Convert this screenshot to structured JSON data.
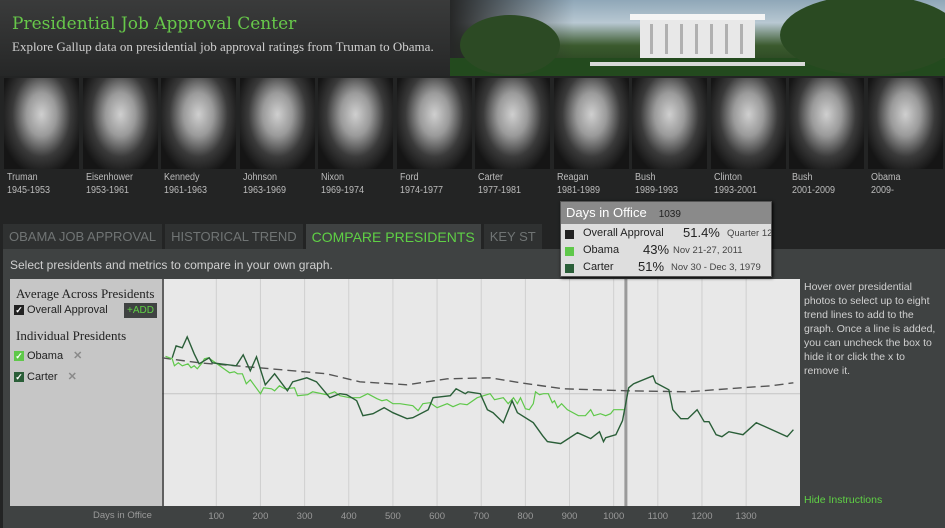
{
  "header": {
    "title": "Presidential Job Approval Center",
    "subtitle": "Explore Gallup data on presidential job approval ratings from Truman to Obama."
  },
  "presidents": [
    {
      "name": "Truman",
      "years": "1945-1953"
    },
    {
      "name": "Eisenhower",
      "years": "1953-1961"
    },
    {
      "name": "Kennedy",
      "years": "1961-1963"
    },
    {
      "name": "Johnson",
      "years": "1963-1969"
    },
    {
      "name": "Nixon",
      "years": "1969-1974"
    },
    {
      "name": "Ford",
      "years": "1974-1977"
    },
    {
      "name": "Carter",
      "years": "1977-1981"
    },
    {
      "name": "Reagan",
      "years": "1981-1989"
    },
    {
      "name": "Bush",
      "years": "1989-1993"
    },
    {
      "name": "Clinton",
      "years": "1993-2001"
    },
    {
      "name": "Bush",
      "years": "2001-2009"
    },
    {
      "name": "Obama",
      "years": "2009-"
    }
  ],
  "tabs": [
    "OBAMA JOB APPROVAL",
    "HISTORICAL TREND",
    "COMPARE PRESIDENTS",
    "KEY ST"
  ],
  "instruction": "Select presidents and metrics to compare in your own graph.",
  "left_panel": {
    "avg_heading": "Average Across Presidents",
    "overall": "Overall Approval",
    "add": "+ADD",
    "ind_heading": "Individual Presidents",
    "items": [
      "Obama",
      "Carter"
    ],
    "remove": "✕",
    "check": "✓"
  },
  "help": "Hover over presidential photos to select up to eight trend lines to add to the graph. Once a line is added, you can uncheck the box to hide it or click the x to remove it.",
  "hide_instructions": "Hide Instructions",
  "tooltip": {
    "title": "Days in Office",
    "day": "1039",
    "rows": [
      {
        "label": "Overall Approval",
        "value": "51.4%",
        "date": "Quarter 12",
        "color": "#222222"
      },
      {
        "label": "Obama",
        "value": "43%",
        "date": "Nov 21-27, 2011",
        "color": "#5fc84a"
      },
      {
        "label": "Carter",
        "value": "51%",
        "date": "Nov 30 - Dec 3, 1979",
        "color": "#2a5e38"
      }
    ]
  },
  "colors": {
    "accent": "#5fd045",
    "obama": "#5fc84a",
    "carter": "#2a5e38",
    "overall": "#555555"
  },
  "chart_data": {
    "type": "line",
    "xlabel": "Days in Office",
    "ylabel": "",
    "xlim": [
      -23,
      1422
    ],
    "ylim": [
      5,
      96
    ],
    "xticks": [
      100,
      200,
      300,
      400,
      500,
      600,
      700,
      800,
      900,
      1000,
      1100,
      1200,
      1300
    ],
    "reference_y": 50,
    "hover_x": 1039,
    "grid": "vertical",
    "series": [
      {
        "name": "Overall Approval",
        "style": "dashed",
        "points": [
          [
            -23,
            64.4
          ],
          [
            61,
            62.4
          ],
          [
            198,
            60.4
          ],
          [
            350,
            58
          ],
          [
            425,
            54.8
          ],
          [
            532,
            53.6
          ],
          [
            623,
            56
          ],
          [
            720,
            56.4
          ],
          [
            789,
            54.4
          ],
          [
            886,
            52
          ],
          [
            1032,
            51.2
          ],
          [
            1168,
            50.8
          ],
          [
            1289,
            52.4
          ],
          [
            1357,
            53.2
          ],
          [
            1407,
            54.4
          ]
        ]
      },
      {
        "name": "Obama",
        "style": "obama",
        "points": [
          [
            -15,
            65
          ],
          [
            0,
            64
          ],
          [
            5,
            61.2
          ],
          [
            14,
            62.4
          ],
          [
            23,
            61.2
          ],
          [
            36,
            62
          ],
          [
            43,
            60.4
          ],
          [
            50,
            61.2
          ],
          [
            57,
            60
          ],
          [
            68,
            62.4
          ],
          [
            73,
            64
          ],
          [
            82,
            64.4
          ],
          [
            95,
            62.8
          ],
          [
            114,
            60.4
          ],
          [
            130,
            58.4
          ],
          [
            141,
            58.8
          ],
          [
            148,
            58
          ],
          [
            159,
            58
          ],
          [
            168,
            54
          ],
          [
            177,
            55.6
          ],
          [
            200,
            50
          ],
          [
            207,
            52.4
          ],
          [
            225,
            52
          ],
          [
            232,
            51.2
          ],
          [
            243,
            53.2
          ],
          [
            255,
            52
          ],
          [
            277,
            52.4
          ],
          [
            284,
            49.2
          ],
          [
            307,
            49.6
          ],
          [
            318,
            50.8
          ],
          [
            350,
            49.6
          ],
          [
            368,
            50.8
          ],
          [
            380,
            49.2
          ],
          [
            402,
            48.4
          ],
          [
            425,
            48.4
          ],
          [
            443,
            50
          ],
          [
            464,
            48
          ],
          [
            475,
            47.2
          ],
          [
            486,
            47.6
          ],
          [
            500,
            46
          ],
          [
            516,
            46
          ],
          [
            545,
            45.2
          ],
          [
            557,
            43.2
          ],
          [
            568,
            46
          ],
          [
            584,
            46.4
          ],
          [
            600,
            44.4
          ],
          [
            623,
            46
          ],
          [
            636,
            44.8
          ],
          [
            652,
            46
          ],
          [
            668,
            45.6
          ],
          [
            691,
            48.4
          ],
          [
            720,
            50
          ],
          [
            730,
            47.6
          ],
          [
            750,
            48.4
          ],
          [
            761,
            46
          ],
          [
            773,
            48.4
          ],
          [
            782,
            46
          ],
          [
            789,
            48.4
          ],
          [
            800,
            44
          ],
          [
            809,
            43.6
          ],
          [
            818,
            46
          ],
          [
            823,
            50.8
          ],
          [
            832,
            49.6
          ],
          [
            841,
            50
          ],
          [
            852,
            50
          ],
          [
            861,
            46.4
          ],
          [
            866,
            47.2
          ],
          [
            873,
            44.4
          ],
          [
            882,
            46
          ],
          [
            895,
            43.6
          ],
          [
            920,
            41.2
          ],
          [
            936,
            41.2
          ],
          [
            948,
            43.6
          ],
          [
            955,
            41.2
          ],
          [
            970,
            42
          ],
          [
            982,
            41.2
          ],
          [
            993,
            42
          ],
          [
            1000,
            43.6
          ],
          [
            1023,
            43.6
          ]
        ]
      },
      {
        "name": "Carter",
        "style": "carter",
        "points": [
          [
            0,
            64.4
          ],
          [
            9,
            69.2
          ],
          [
            23,
            68.4
          ],
          [
            34,
            72.8
          ],
          [
            50,
            66
          ],
          [
            61,
            62
          ],
          [
            84,
            64.4
          ],
          [
            91,
            62.4
          ],
          [
            145,
            61.2
          ],
          [
            161,
            65.6
          ],
          [
            177,
            59.2
          ],
          [
            191,
            64.8
          ],
          [
            211,
            53.6
          ],
          [
            232,
            58
          ],
          [
            261,
            51.2
          ],
          [
            273,
            54.8
          ],
          [
            305,
            56.4
          ],
          [
            327,
            54.8
          ],
          [
            357,
            48.4
          ],
          [
            380,
            50
          ],
          [
            395,
            49.6
          ],
          [
            418,
            47.2
          ],
          [
            432,
            41.2
          ],
          [
            455,
            42
          ],
          [
            480,
            44.4
          ],
          [
            500,
            42.4
          ],
          [
            532,
            40
          ],
          [
            545,
            40.4
          ],
          [
            580,
            43.6
          ],
          [
            591,
            48.4
          ],
          [
            630,
            49.2
          ],
          [
            643,
            52
          ],
          [
            664,
            50
          ],
          [
            670,
            50.8
          ],
          [
            698,
            50
          ],
          [
            714,
            43.6
          ],
          [
            727,
            42.4
          ],
          [
            750,
            38.4
          ],
          [
            770,
            47.2
          ],
          [
            782,
            42.4
          ],
          [
            818,
            38.4
          ],
          [
            839,
            33.2
          ],
          [
            850,
            30.8
          ],
          [
            880,
            30
          ],
          [
            918,
            34.4
          ],
          [
            948,
            32
          ],
          [
            968,
            34.8
          ],
          [
            977,
            30.8
          ],
          [
            982,
            32.4
          ],
          [
            1005,
            33.6
          ],
          [
            1020,
            39.2
          ],
          [
            1034,
            52.4
          ],
          [
            1045,
            54
          ],
          [
            1089,
            57.2
          ],
          [
            1095,
            54.4
          ],
          [
            1125,
            51.6
          ],
          [
            1134,
            43.6
          ],
          [
            1152,
            40
          ],
          [
            1168,
            40
          ],
          [
            1189,
            43.6
          ],
          [
            1205,
            38.8
          ],
          [
            1216,
            38.8
          ],
          [
            1232,
            33.6
          ],
          [
            1245,
            32.8
          ],
          [
            1261,
            34.8
          ],
          [
            1293,
            33.6
          ],
          [
            1323,
            38.4
          ],
          [
            1393,
            32.8
          ],
          [
            1407,
            35.6
          ]
        ]
      }
    ]
  }
}
